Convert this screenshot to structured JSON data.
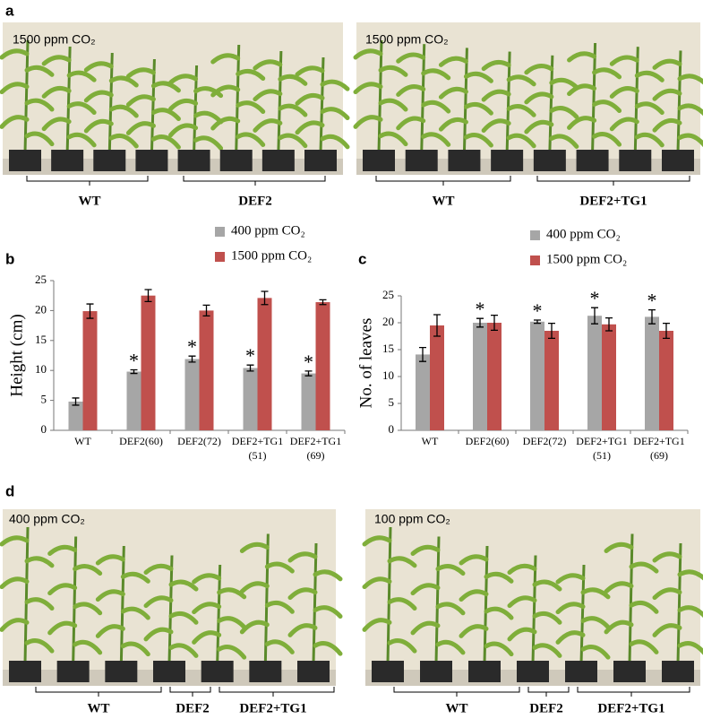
{
  "panels": {
    "a": {
      "label": "a",
      "photos": [
        {
          "caption": "1500 ppm CO₂",
          "groups": [
            "WT",
            "DEF2"
          ]
        },
        {
          "caption": "1500 ppm CO₂",
          "groups": [
            "WT",
            "DEF2+TG1"
          ]
        }
      ]
    },
    "b": {
      "label": "b"
    },
    "c": {
      "label": "c"
    },
    "d": {
      "label": "d",
      "photos": [
        {
          "caption": "400 ppm CO₂",
          "groups": [
            "WT",
            "DEF2",
            "DEF2+TG1"
          ]
        },
        {
          "caption": "100 ppm CO₂",
          "groups": [
            "WT",
            "DEF2",
            "DEF2+TG1"
          ]
        }
      ]
    }
  },
  "chart_data": [
    {
      "type": "bar",
      "y_label": "Height (cm)",
      "categories": [
        "WT",
        "DEF2(60)",
        "DEF2(72)",
        "DEF2+TG1 (51)",
        "DEF2+TG1 (69)"
      ],
      "series": [
        {
          "name": "400 ppm CO₂",
          "color": "#a6a6a6",
          "values": [
            4.8,
            9.8,
            11.9,
            10.4,
            9.5
          ],
          "errors": [
            0.6,
            0.3,
            0.5,
            0.5,
            0.4
          ]
        },
        {
          "name": "1500 ppm CO₂",
          "color": "#c0504d",
          "values": [
            19.9,
            22.5,
            20.0,
            22.1,
            21.4
          ],
          "errors": [
            1.2,
            1.0,
            0.9,
            1.1,
            0.4
          ]
        }
      ],
      "annotations": [
        {
          "category": "DEF2(60)",
          "text": "*"
        },
        {
          "category": "DEF2(72)",
          "text": "*"
        },
        {
          "category": "DEF2+TG1 (51)",
          "text": "*"
        },
        {
          "category": "DEF2+TG1 (69)",
          "text": "*"
        }
      ],
      "ylim": [
        0,
        25
      ],
      "yticks": [
        0,
        5,
        10,
        15,
        20,
        25
      ]
    },
    {
      "type": "bar",
      "y_label": "No. of leaves",
      "categories": [
        "WT",
        "DEF2(60)",
        "DEF2(72)",
        "DEF2+TG1 (51)",
        "DEF2+TG1 (69)"
      ],
      "series": [
        {
          "name": "400 ppm CO₂",
          "color": "#a6a6a6",
          "values": [
            14.1,
            20.0,
            20.2,
            21.3,
            21.1
          ],
          "errors": [
            1.3,
            0.8,
            0.3,
            1.5,
            1.3
          ]
        },
        {
          "name": "1500 ppm CO₂",
          "color": "#c0504d",
          "values": [
            19.5,
            20.0,
            18.5,
            19.7,
            18.5
          ],
          "errors": [
            2.0,
            1.4,
            1.4,
            1.2,
            1.4
          ]
        }
      ],
      "annotations": [
        {
          "category": "DEF2(60)",
          "text": "*"
        },
        {
          "category": "DEF2(72)",
          "text": "*"
        },
        {
          "category": "DEF2+TG1 (51)",
          "text": "*"
        },
        {
          "category": "DEF2+TG1 (69)",
          "text": "*"
        }
      ],
      "ylim": [
        0,
        25
      ],
      "yticks": [
        0,
        5,
        10,
        15,
        20,
        25
      ]
    }
  ]
}
